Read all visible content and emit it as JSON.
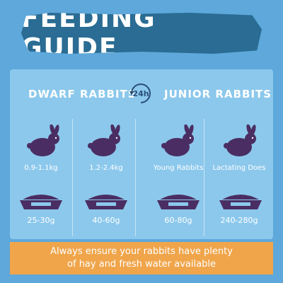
{
  "title": "FEEDING GUIDE",
  "clock_label": "24h",
  "groups": {
    "dwarf": "DWARF RABBITS",
    "junior": "JUNIOR RABBITS"
  },
  "columns": [
    {
      "label": "0.9-1.1kg",
      "amount": "25-30g"
    },
    {
      "label": "1.2-2.4kg",
      "amount": "40-60g"
    },
    {
      "label": "Young Rabbits",
      "amount": "60-80g"
    },
    {
      "label": "Lactating Does",
      "amount": "240-280g"
    }
  ],
  "footer": {
    "line1": "Always ensure your rabbits have plenty",
    "line2": "of hay and fresh water available"
  },
  "colors": {
    "background": "#5ea8db",
    "banner": "#2a6c93",
    "panel": "#8cc8ec",
    "rabbit": "#4a2e63",
    "footer": "#f0a54b"
  },
  "icons": [
    "rabbit-icon",
    "food-bowl-icon",
    "clock-24h-icon"
  ]
}
